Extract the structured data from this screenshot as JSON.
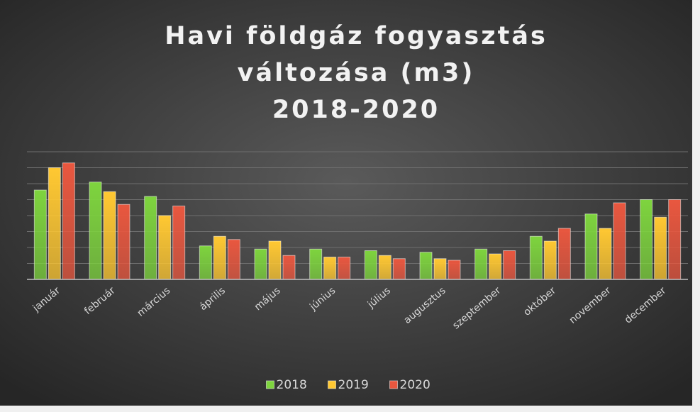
{
  "chart_data": {
    "type": "bar",
    "title": [
      "Havi földgáz fogyasztás",
      "változása (m3)",
      "2018-2020"
    ],
    "categories": [
      "január",
      "február",
      "március",
      "április",
      "május",
      "június",
      "július",
      "augusztus",
      "szeptember",
      "október",
      "november",
      "december"
    ],
    "series": [
      {
        "name": "2018",
        "color": "#7ed43e",
        "values": [
          5.6,
          6.1,
          5.2,
          2.1,
          1.9,
          1.9,
          1.8,
          1.7,
          1.9,
          2.7,
          4.1,
          5.0
        ]
      },
      {
        "name": "2019",
        "color": "#ffc832",
        "values": [
          7.0,
          5.5,
          4.0,
          2.7,
          2.4,
          1.4,
          1.5,
          1.3,
          1.6,
          2.4,
          3.2,
          3.9
        ]
      },
      {
        "name": "2020",
        "color": "#e9573f",
        "values": [
          7.3,
          4.7,
          4.6,
          2.5,
          1.5,
          1.4,
          1.3,
          1.2,
          1.8,
          3.2,
          4.8,
          5.0
        ]
      }
    ],
    "ylim": [
      0,
      8
    ],
    "yticks": [
      0,
      1,
      2,
      3,
      4,
      5,
      6,
      7,
      8
    ],
    "grid": true,
    "legend": "bottom"
  }
}
